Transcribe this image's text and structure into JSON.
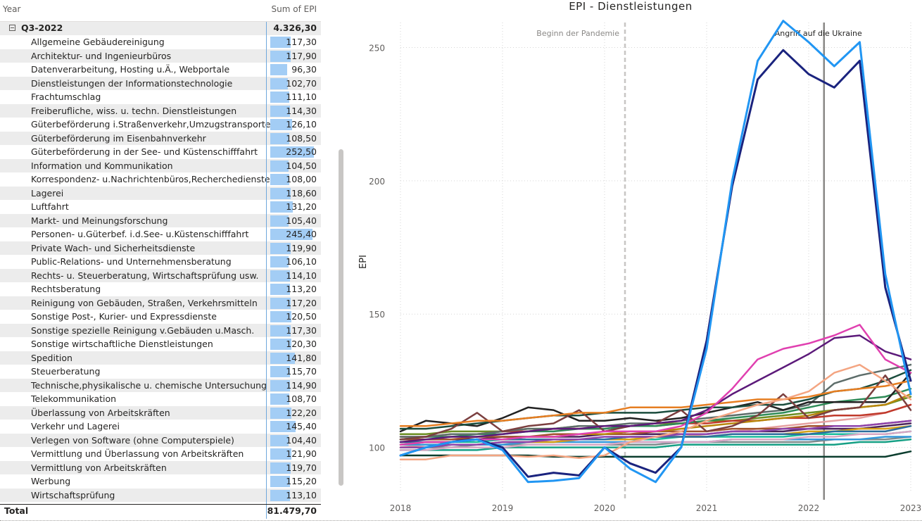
{
  "matrix": {
    "col_year": "Year",
    "col_value": "Sum of EPI",
    "group": {
      "label": "Q3-2022",
      "value": "4.326,30"
    },
    "rows": [
      {
        "label": "Allgemeine Gebäudereinigung",
        "value": "117,30",
        "num": 117.3
      },
      {
        "label": "Architektur- und Ingenieurbüros",
        "value": "117,90",
        "num": 117.9
      },
      {
        "label": "Datenverarbeitung, Hosting u.Ä., Webportale",
        "value": "96,30",
        "num": 96.3
      },
      {
        "label": "Dienstleistungen der Informationstechnologie",
        "value": "102,70",
        "num": 102.7
      },
      {
        "label": "Frachtumschlag",
        "value": "111,10",
        "num": 111.1
      },
      {
        "label": "Freiberufliche, wiss. u. techn. Dienstleistungen",
        "value": "114,30",
        "num": 114.3
      },
      {
        "label": "Güterbeförderung i.Straßenverkehr,Umzugstransporte",
        "value": "126,10",
        "num": 126.1
      },
      {
        "label": "Güterbeförderung im Eisenbahnverkehr",
        "value": "108,50",
        "num": 108.5
      },
      {
        "label": "Güterbeförderung in der See- und Küstenschifffahrt",
        "value": "252,50",
        "num": 252.5
      },
      {
        "label": "Information und Kommunikation",
        "value": "104,50",
        "num": 104.5
      },
      {
        "label": "Korrespondenz- u.Nachrichtenbüros,Recherchedienste",
        "value": "108,00",
        "num": 108.0
      },
      {
        "label": "Lagerei",
        "value": "118,60",
        "num": 118.6
      },
      {
        "label": "Luftfahrt",
        "value": "131,20",
        "num": 131.2
      },
      {
        "label": "Markt- und Meinungsforschung",
        "value": "105,40",
        "num": 105.4
      },
      {
        "label": "Personen- u.Güterbef. i.d.See- u.Küstenschifffahrt",
        "value": "245,40",
        "num": 245.4
      },
      {
        "label": "Private Wach- und Sicherheitsdienste",
        "value": "119,90",
        "num": 119.9
      },
      {
        "label": "Public-Relations- und Unternehmensberatung",
        "value": "106,10",
        "num": 106.1
      },
      {
        "label": "Rechts- u. Steuerberatung, Wirtschaftsprüfung usw.",
        "value": "114,10",
        "num": 114.1
      },
      {
        "label": "Rechtsberatung",
        "value": "113,20",
        "num": 113.2
      },
      {
        "label": "Reinigung von Gebäuden, Straßen, Verkehrsmitteln",
        "value": "117,20",
        "num": 117.2
      },
      {
        "label": "Sonstige Post-, Kurier- und Expressdienste",
        "value": "120,50",
        "num": 120.5
      },
      {
        "label": "Sonstige spezielle Reinigung v.Gebäuden u.Masch.",
        "value": "117,30",
        "num": 117.3
      },
      {
        "label": "Sonstige wirtschaftliche Dienstleistungen",
        "value": "120,30",
        "num": 120.3
      },
      {
        "label": "Spedition",
        "value": "141,80",
        "num": 141.8
      },
      {
        "label": "Steuerberatung",
        "value": "115,70",
        "num": 115.7
      },
      {
        "label": "Technische,physikalische u. chemische Untersuchung",
        "value": "114,90",
        "num": 114.9
      },
      {
        "label": "Telekommunikation",
        "value": "108,70",
        "num": 108.7
      },
      {
        "label": "Überlassung von Arbeitskräften",
        "value": "122,20",
        "num": 122.2
      },
      {
        "label": "Verkehr und Lagerei",
        "value": "145,40",
        "num": 145.4
      },
      {
        "label": "Verlegen von Software (ohne Computerspiele)",
        "value": "104,40",
        "num": 104.4
      },
      {
        "label": "Vermittlung und Überlassung von Arbeitskräften",
        "value": "121,90",
        "num": 121.9
      },
      {
        "label": "Vermittlung von Arbeitskräften",
        "value": "119,70",
        "num": 119.7
      },
      {
        "label": "Werbung",
        "value": "115,20",
        "num": 115.2
      },
      {
        "label": "Wirtschaftsprüfung",
        "value": "113,10",
        "num": 113.1
      }
    ],
    "total": {
      "label": "Total",
      "value": "81.479,70"
    },
    "bar_color": "#a3cdf5"
  },
  "chart_data": {
    "type": "line",
    "title": "EPI - Dienstleistungen",
    "ylabel": "EPI",
    "xlabel": "",
    "x_ticks": [
      "2018",
      "2019",
      "2020",
      "2021",
      "2022",
      "2023"
    ],
    "y_ticks": [
      100,
      150,
      200,
      250
    ],
    "xlim": [
      2018,
      2023
    ],
    "ylim": [
      83,
      262
    ],
    "grid": "dotted",
    "annotations": [
      {
        "x": 2020.2,
        "label": "Beginn der Pandemie",
        "style": "dashed",
        "color": "#c8c6c4"
      },
      {
        "x": 2022.15,
        "label": "Angriff auf die Ukraine",
        "style": "solid",
        "color": "#8a8886"
      }
    ],
    "x": [
      2018.0,
      2018.25,
      2018.5,
      2018.75,
      2019.0,
      2019.25,
      2019.5,
      2019.75,
      2020.0,
      2020.25,
      2020.5,
      2020.75,
      2021.0,
      2021.25,
      2021.5,
      2021.75,
      2022.0,
      2022.25,
      2022.5,
      2022.75,
      2023.0
    ],
    "series": [
      {
        "color": "#2196f3",
        "values": [
          97,
          100,
          102,
          103,
          99,
          87,
          87.5,
          88.5,
          100,
          92,
          87,
          100,
          137,
          200,
          245,
          260,
          252,
          243,
          252,
          165,
          120
        ]
      },
      {
        "color": "#1a237e",
        "values": [
          97,
          100,
          102,
          103,
          100,
          89,
          90.5,
          89.5,
          100,
          94,
          90.5,
          100,
          140,
          198,
          238,
          249,
          240,
          235,
          245,
          160,
          125
        ]
      },
      {
        "color": "#e040b0",
        "values": [
          101,
          102,
          102,
          103,
          103,
          104,
          104,
          105,
          106,
          106,
          106,
          108,
          113,
          122,
          133,
          137,
          139,
          142,
          146,
          133,
          128
        ]
      },
      {
        "color": "#5c1a7a",
        "values": [
          102,
          103,
          104,
          104,
          105,
          106,
          107,
          107,
          108,
          108,
          109,
          110,
          114,
          120,
          125,
          130,
          135,
          141,
          142,
          136,
          133
        ]
      },
      {
        "color": "#f4a582",
        "values": [
          95.5,
          95.5,
          97,
          97,
          97,
          96.5,
          97,
          96,
          97,
          102,
          104,
          106,
          110,
          113,
          116,
          118,
          121,
          128,
          131,
          125,
          118
        ]
      },
      {
        "color": "#e67e22",
        "values": [
          108,
          108,
          109,
          110,
          110,
          111,
          112,
          113,
          113,
          115,
          115,
          115,
          116,
          117,
          118,
          118,
          119,
          121,
          122,
          123,
          125
        ]
      },
      {
        "color": "#7b3f3f",
        "values": [
          103,
          104,
          107,
          113,
          106,
          108,
          109,
          114,
          106,
          108,
          109,
          114,
          106,
          108,
          112,
          120,
          111,
          114,
          115,
          127,
          114
        ]
      },
      {
        "color": "#1b4d3e",
        "values": [
          107,
          107,
          108,
          109,
          110,
          111,
          112,
          112,
          113,
          113,
          113,
          114,
          115,
          115,
          116,
          116,
          118,
          121,
          122,
          125,
          129
        ]
      },
      {
        "color": "#212121",
        "values": [
          106,
          110,
          109,
          108,
          111,
          115,
          114,
          110,
          110,
          111,
          110,
          111,
          113,
          115,
          117,
          114,
          117,
          117,
          117,
          117,
          128
        ]
      },
      {
        "color": "#5d6d6a",
        "values": [
          104,
          104,
          105,
          105,
          106,
          107,
          107,
          108,
          108,
          109,
          109,
          110,
          111,
          112,
          113,
          114,
          116,
          124,
          127,
          129,
          131
        ]
      },
      {
        "color": "#2e8b57",
        "values": [
          103,
          104,
          104,
          105,
          105,
          106,
          106,
          107,
          107,
          108,
          108,
          109,
          110,
          111,
          112,
          113,
          115,
          117,
          118,
          119,
          122
        ]
      },
      {
        "color": "#b8860b",
        "values": [
          101,
          102,
          102,
          103,
          103,
          104,
          104,
          105,
          105,
          106,
          106,
          107,
          108,
          109,
          110,
          111,
          112,
          114,
          115,
          116,
          120
        ]
      },
      {
        "color": "#8e44ad",
        "values": [
          100,
          100,
          101,
          101,
          102,
          102,
          103,
          103,
          104,
          104,
          104,
          105,
          105,
          106,
          106,
          107,
          107,
          108,
          108,
          109,
          110
        ]
      },
      {
        "color": "#2c6e9e",
        "values": [
          102,
          102,
          102,
          103,
          103,
          103,
          103,
          103,
          103,
          104,
          104,
          104,
          104,
          105,
          105,
          105,
          105,
          106,
          106,
          106,
          108
        ]
      },
      {
        "color": "#c0392b",
        "values": [
          104,
          104,
          105,
          105,
          106,
          106,
          107,
          107,
          107,
          108,
          108,
          109,
          109,
          110,
          110,
          111,
          111,
          112,
          112,
          113,
          116
        ]
      },
      {
        "color": "#d4a017",
        "values": [
          100,
          100,
          101,
          101,
          102,
          102,
          102,
          103,
          103,
          103,
          104,
          104,
          104,
          105,
          105,
          105,
          106,
          106,
          107,
          107,
          108
        ]
      },
      {
        "color": "#6b8e23",
        "values": [
          105,
          105,
          106,
          106,
          106,
          107,
          107,
          108,
          108,
          108,
          109,
          109,
          110,
          110,
          111,
          112,
          113,
          114,
          115,
          116,
          119
        ]
      },
      {
        "color": "#a0522d",
        "values": [
          103,
          103,
          103,
          104,
          104,
          104,
          105,
          105,
          105,
          105,
          106,
          106,
          106,
          107,
          107,
          107,
          108,
          108,
          108,
          109,
          110
        ]
      },
      {
        "color": "#d8a7c4",
        "values": [
          99,
          99,
          100,
          100,
          100,
          101,
          101,
          101,
          101,
          102,
          102,
          102,
          102,
          103,
          103,
          103,
          104,
          104,
          105,
          105,
          106
        ]
      },
      {
        "color": "#3498db",
        "values": [
          101,
          101,
          101,
          101,
          101,
          102,
          102,
          102,
          102,
          102,
          102,
          102,
          102,
          103,
          103,
          103,
          103,
          103,
          103,
          104,
          104
        ]
      },
      {
        "color": "#1abc9c",
        "values": [
          102,
          102,
          102,
          102,
          103,
          103,
          103,
          103,
          103,
          103,
          103,
          104,
          104,
          104,
          104,
          104,
          105,
          105,
          105,
          105,
          106
        ]
      },
      {
        "color": "#7f8c8d",
        "values": [
          100,
          100,
          100,
          101,
          101,
          101,
          101,
          101,
          101,
          101,
          101,
          102,
          102,
          102,
          102,
          102,
          102,
          103,
          103,
          103,
          104
        ]
      },
      {
        "color": "#16a085",
        "values": [
          99,
          99,
          99,
          99,
          100,
          100,
          100,
          100,
          100,
          100,
          100,
          101,
          101,
          101,
          101,
          101,
          101,
          101,
          102,
          102,
          103
        ]
      },
      {
        "color": "#0b3d2e",
        "values": [
          97,
          97,
          97,
          97,
          97,
          97,
          96.5,
          96.5,
          96.5,
          96.5,
          96.5,
          96.5,
          96.5,
          96.5,
          96.5,
          96.5,
          96.5,
          96.5,
          96.5,
          96.5,
          98.5
        ]
      },
      {
        "color": "#e6a0a0",
        "values": [
          100,
          101,
          101,
          101,
          102,
          102,
          102,
          103,
          103,
          103,
          104,
          104,
          105,
          106,
          107,
          108,
          109,
          110,
          111,
          113,
          116
        ]
      },
      {
        "color": "#4a235a",
        "values": [
          103,
          103,
          103,
          103,
          104,
          104,
          104,
          104,
          105,
          105,
          105,
          105,
          105,
          106,
          106,
          106,
          107,
          107,
          107,
          108,
          109
        ]
      }
    ]
  }
}
